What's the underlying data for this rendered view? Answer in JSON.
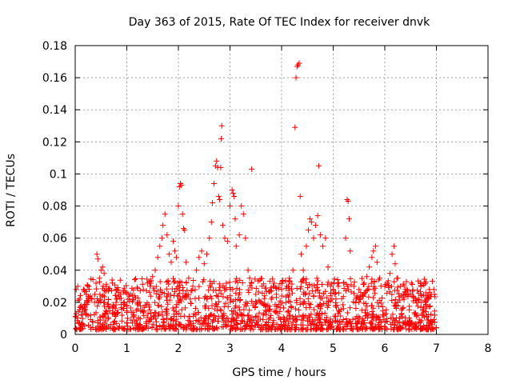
{
  "chart_data": {
    "type": "scatter",
    "title": "Day 363 of 2015, Rate Of TEC Index for receiver dnvk",
    "xlabel": "GPS time / hours",
    "ylabel": "ROTI / TECUs",
    "xlim": [
      0,
      8
    ],
    "ylim": [
      0,
      0.18
    ],
    "x_ticks": [
      "0",
      "1",
      "2",
      "3",
      "4",
      "5",
      "6",
      "7",
      "8"
    ],
    "y_ticks": [
      "0",
      "0.02",
      "0.04",
      "0.06",
      "0.08",
      "0.1",
      "0.12",
      "0.14",
      "0.16",
      "0.18"
    ],
    "grid": true,
    "marker": "+",
    "marker_color": "#ff0000",
    "series": [
      {
        "name": "ROTI",
        "points": [
          [
            0.02,
            0.028
          ],
          [
            0.05,
            0.03
          ],
          [
            0.08,
            0.022
          ],
          [
            0.12,
            0.018
          ],
          [
            0.18,
            0.015
          ],
          [
            0.25,
            0.02
          ],
          [
            0.3,
            0.012
          ],
          [
            0.38,
            0.025
          ],
          [
            0.42,
            0.05
          ],
          [
            0.44,
            0.047
          ],
          [
            0.47,
            0.035
          ],
          [
            0.5,
            0.04
          ],
          [
            0.53,
            0.042
          ],
          [
            0.56,
            0.038
          ],
          [
            0.6,
            0.03
          ],
          [
            0.65,
            0.028
          ],
          [
            0.72,
            0.032
          ],
          [
            0.8,
            0.022
          ],
          [
            0.88,
            0.025
          ],
          [
            0.95,
            0.02
          ],
          [
            1.0,
            0.018
          ],
          [
            1.05,
            0.022
          ],
          [
            1.15,
            0.024
          ],
          [
            1.25,
            0.02
          ],
          [
            1.32,
            0.028
          ],
          [
            1.4,
            0.032
          ],
          [
            1.45,
            0.03
          ],
          [
            1.5,
            0.036
          ],
          [
            1.55,
            0.04
          ],
          [
            1.6,
            0.048
          ],
          [
            1.64,
            0.055
          ],
          [
            1.68,
            0.06
          ],
          [
            1.7,
            0.068
          ],
          [
            1.74,
            0.075
          ],
          [
            1.78,
            0.062
          ],
          [
            1.82,
            0.05
          ],
          [
            1.86,
            0.045
          ],
          [
            1.9,
            0.058
          ],
          [
            1.93,
            0.052
          ],
          [
            1.96,
            0.048
          ],
          [
            2.0,
            0.08
          ],
          [
            2.02,
            0.092
          ],
          [
            2.04,
            0.094
          ],
          [
            2.06,
            0.093
          ],
          [
            2.08,
            0.075
          ],
          [
            2.1,
            0.066
          ],
          [
            2.12,
            0.065
          ],
          [
            2.15,
            0.045
          ],
          [
            2.2,
            0.035
          ],
          [
            2.28,
            0.03
          ],
          [
            2.35,
            0.04
          ],
          [
            2.4,
            0.048
          ],
          [
            2.45,
            0.052
          ],
          [
            2.5,
            0.044
          ],
          [
            2.55,
            0.05
          ],
          [
            2.6,
            0.06
          ],
          [
            2.64,
            0.07
          ],
          [
            2.66,
            0.082
          ],
          [
            2.69,
            0.094
          ],
          [
            2.72,
            0.105
          ],
          [
            2.74,
            0.108
          ],
          [
            2.76,
            0.104
          ],
          [
            2.78,
            0.086
          ],
          [
            2.8,
            0.084
          ],
          [
            2.82,
            0.104
          ],
          [
            2.83,
            0.122
          ],
          [
            2.84,
            0.13
          ],
          [
            2.86,
            0.068
          ],
          [
            2.9,
            0.06
          ],
          [
            2.95,
            0.058
          ],
          [
            3.0,
            0.08
          ],
          [
            3.04,
            0.09
          ],
          [
            3.06,
            0.088
          ],
          [
            3.08,
            0.086
          ],
          [
            3.1,
            0.072
          ],
          [
            3.12,
            0.055
          ],
          [
            3.18,
            0.062
          ],
          [
            3.22,
            0.08
          ],
          [
            3.26,
            0.075
          ],
          [
            3.3,
            0.06
          ],
          [
            3.35,
            0.04
          ],
          [
            3.38,
            0.035
          ],
          [
            3.42,
            0.103
          ],
          [
            3.5,
            0.025
          ],
          [
            3.6,
            0.02
          ],
          [
            3.7,
            0.018
          ],
          [
            3.8,
            0.022
          ],
          [
            3.9,
            0.025
          ],
          [
            4.0,
            0.028
          ],
          [
            4.1,
            0.03
          ],
          [
            4.15,
            0.035
          ],
          [
            4.22,
            0.04
          ],
          [
            4.26,
            0.129
          ],
          [
            4.28,
            0.16
          ],
          [
            4.3,
            0.167
          ],
          [
            4.32,
            0.168
          ],
          [
            4.34,
            0.169
          ],
          [
            4.36,
            0.086
          ],
          [
            4.38,
            0.05
          ],
          [
            4.42,
            0.04
          ],
          [
            4.48,
            0.055
          ],
          [
            4.52,
            0.065
          ],
          [
            4.55,
            0.072
          ],
          [
            4.58,
            0.07
          ],
          [
            4.62,
            0.06
          ],
          [
            4.66,
            0.068
          ],
          [
            4.7,
            0.074
          ],
          [
            4.72,
            0.105
          ],
          [
            4.75,
            0.062
          ],
          [
            4.8,
            0.055
          ],
          [
            4.85,
            0.06
          ],
          [
            4.9,
            0.042
          ],
          [
            4.95,
            0.03
          ],
          [
            5.0,
            0.028
          ],
          [
            5.1,
            0.03
          ],
          [
            5.2,
            0.032
          ],
          [
            5.24,
            0.06
          ],
          [
            5.27,
            0.084
          ],
          [
            5.29,
            0.083
          ],
          [
            5.31,
            0.072
          ],
          [
            5.33,
            0.052
          ],
          [
            5.4,
            0.03
          ],
          [
            5.5,
            0.028
          ],
          [
            5.6,
            0.032
          ],
          [
            5.65,
            0.036
          ],
          [
            5.7,
            0.042
          ],
          [
            5.75,
            0.048
          ],
          [
            5.78,
            0.052
          ],
          [
            5.82,
            0.055
          ],
          [
            5.85,
            0.045
          ],
          [
            5.9,
            0.035
          ],
          [
            6.0,
            0.03
          ],
          [
            6.05,
            0.032
          ],
          [
            6.1,
            0.038
          ],
          [
            6.14,
            0.05
          ],
          [
            6.18,
            0.055
          ],
          [
            6.2,
            0.044
          ],
          [
            6.25,
            0.035
          ],
          [
            6.3,
            0.03
          ],
          [
            6.4,
            0.028
          ],
          [
            6.5,
            0.025
          ],
          [
            6.6,
            0.022
          ],
          [
            6.7,
            0.02
          ],
          [
            6.8,
            0.018
          ],
          [
            6.9,
            0.025
          ],
          [
            6.95,
            0.028
          ]
        ]
      }
    ],
    "dense_band": {
      "x_range": [
        0,
        7
      ],
      "y_range": [
        0.003,
        0.035
      ],
      "note": "dense cluster of points below ~0.035 across 0-7 h"
    }
  }
}
